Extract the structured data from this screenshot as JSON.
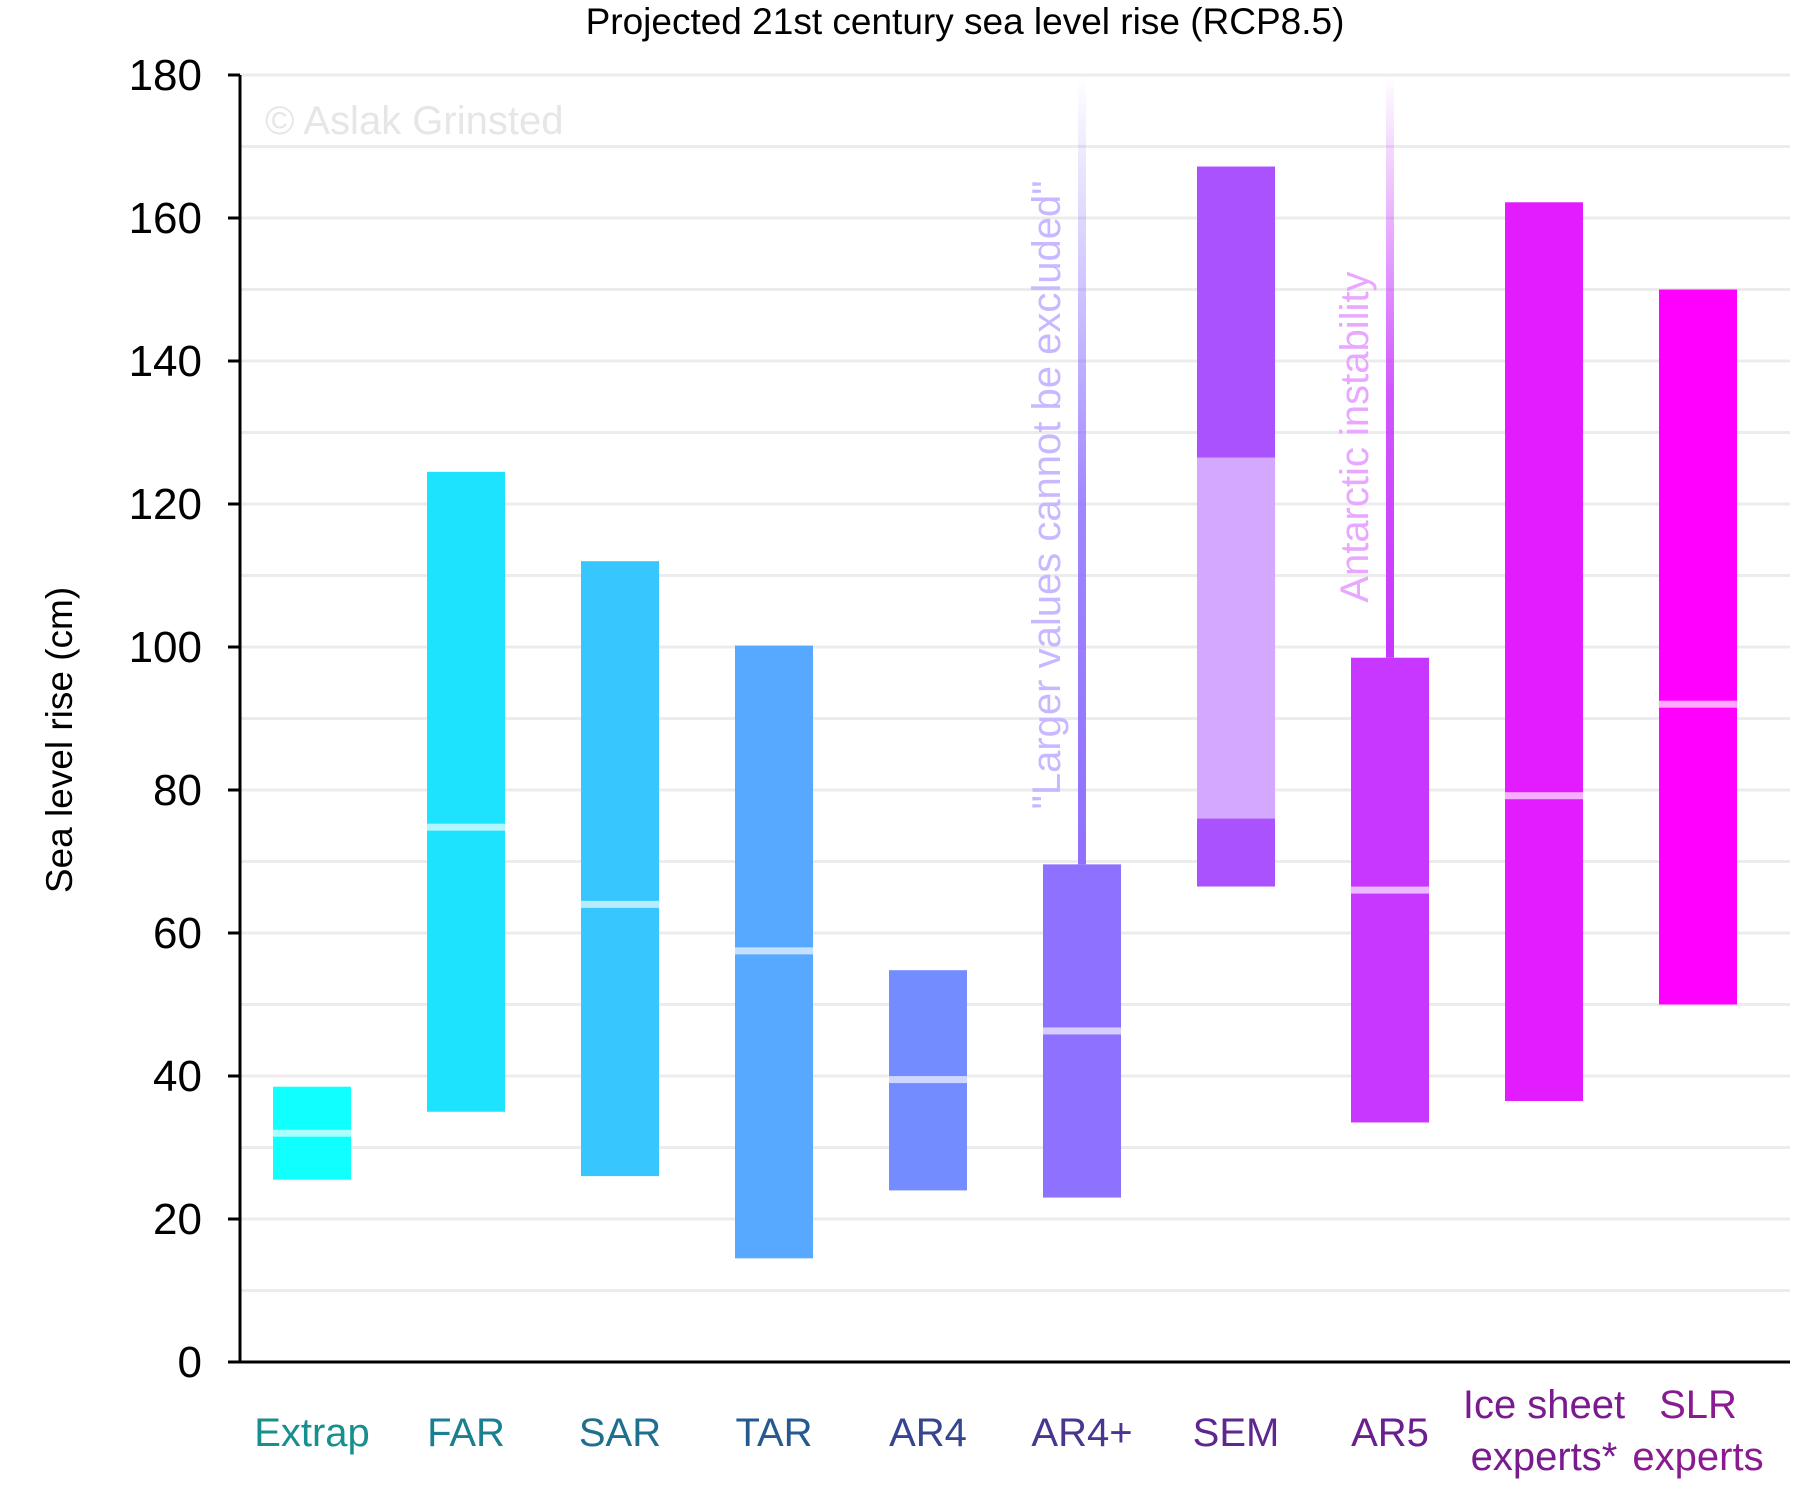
{
  "chart_data": {
    "type": "bar",
    "title": "Projected 21st century sea level rise  (RCP8.5)",
    "ylabel": "Sea level rise (cm)",
    "ylim": [
      0,
      180
    ],
    "yticks": [
      0,
      20,
      40,
      60,
      80,
      100,
      120,
      140,
      160,
      180
    ],
    "grid": true,
    "watermark": "© Aslak Grinsted",
    "categories": [
      {
        "label": [
          "Extrap"
        ],
        "low": 25.5,
        "high": 38.5,
        "median": 32,
        "color": "#10ffff",
        "label_color": "#178f8f"
      },
      {
        "label": [
          "FAR"
        ],
        "low": 35,
        "high": 124.5,
        "median": 74.8,
        "color": "#1ee3ff",
        "label_color": "#1a7f8f"
      },
      {
        "label": [
          "SAR"
        ],
        "low": 26,
        "high": 112,
        "median": 64,
        "color": "#38c6ff",
        "label_color": "#1f6f8f"
      },
      {
        "label": [
          "TAR"
        ],
        "low": 14.5,
        "high": 100.2,
        "median": 57.5,
        "color": "#56a9ff",
        "label_color": "#245a8f"
      },
      {
        "label": [
          "AR4"
        ],
        "low": 24,
        "high": 54.8,
        "median": 39.5,
        "color": "#738cff",
        "label_color": "#35458f"
      },
      {
        "label": [
          "AR4+"
        ],
        "low": 23,
        "high": 69.6,
        "median": 46.3,
        "color": "#8f71ff",
        "label_color": "#4a358f",
        "whisker_top": 180
      },
      {
        "label": [
          "SEM"
        ],
        "low": 66.5,
        "high": 167.2,
        "inner_low": 76,
        "inner_high": 126.5,
        "color": "#ab52ff",
        "inner_color": "#d4a8ff",
        "label_color": "#5e268f"
      },
      {
        "label": [
          "AR5"
        ],
        "low": 33.5,
        "high": 98.5,
        "median": 66,
        "color": "#c737ff",
        "label_color": "#6a1f8f",
        "whisker_top": 180
      },
      {
        "label": [
          "Ice sheet",
          "experts*"
        ],
        "low": 36.5,
        "high": 162.2,
        "median": 79.2,
        "color": "#e31bff",
        "label_color": "#7a1a8f"
      },
      {
        "label": [
          "SLR",
          "experts"
        ],
        "low": 50,
        "high": 150,
        "median": 92,
        "color": "#ff00ff",
        "label_color": "#8a1a8f"
      }
    ],
    "annotations": [
      {
        "text": "\"Larger values cannot be excluded\"",
        "category_index": 5,
        "color": "#c9b8ff"
      },
      {
        "text": "Antarctic instability",
        "category_index": 7,
        "color": "#e8a8ff"
      }
    ]
  }
}
